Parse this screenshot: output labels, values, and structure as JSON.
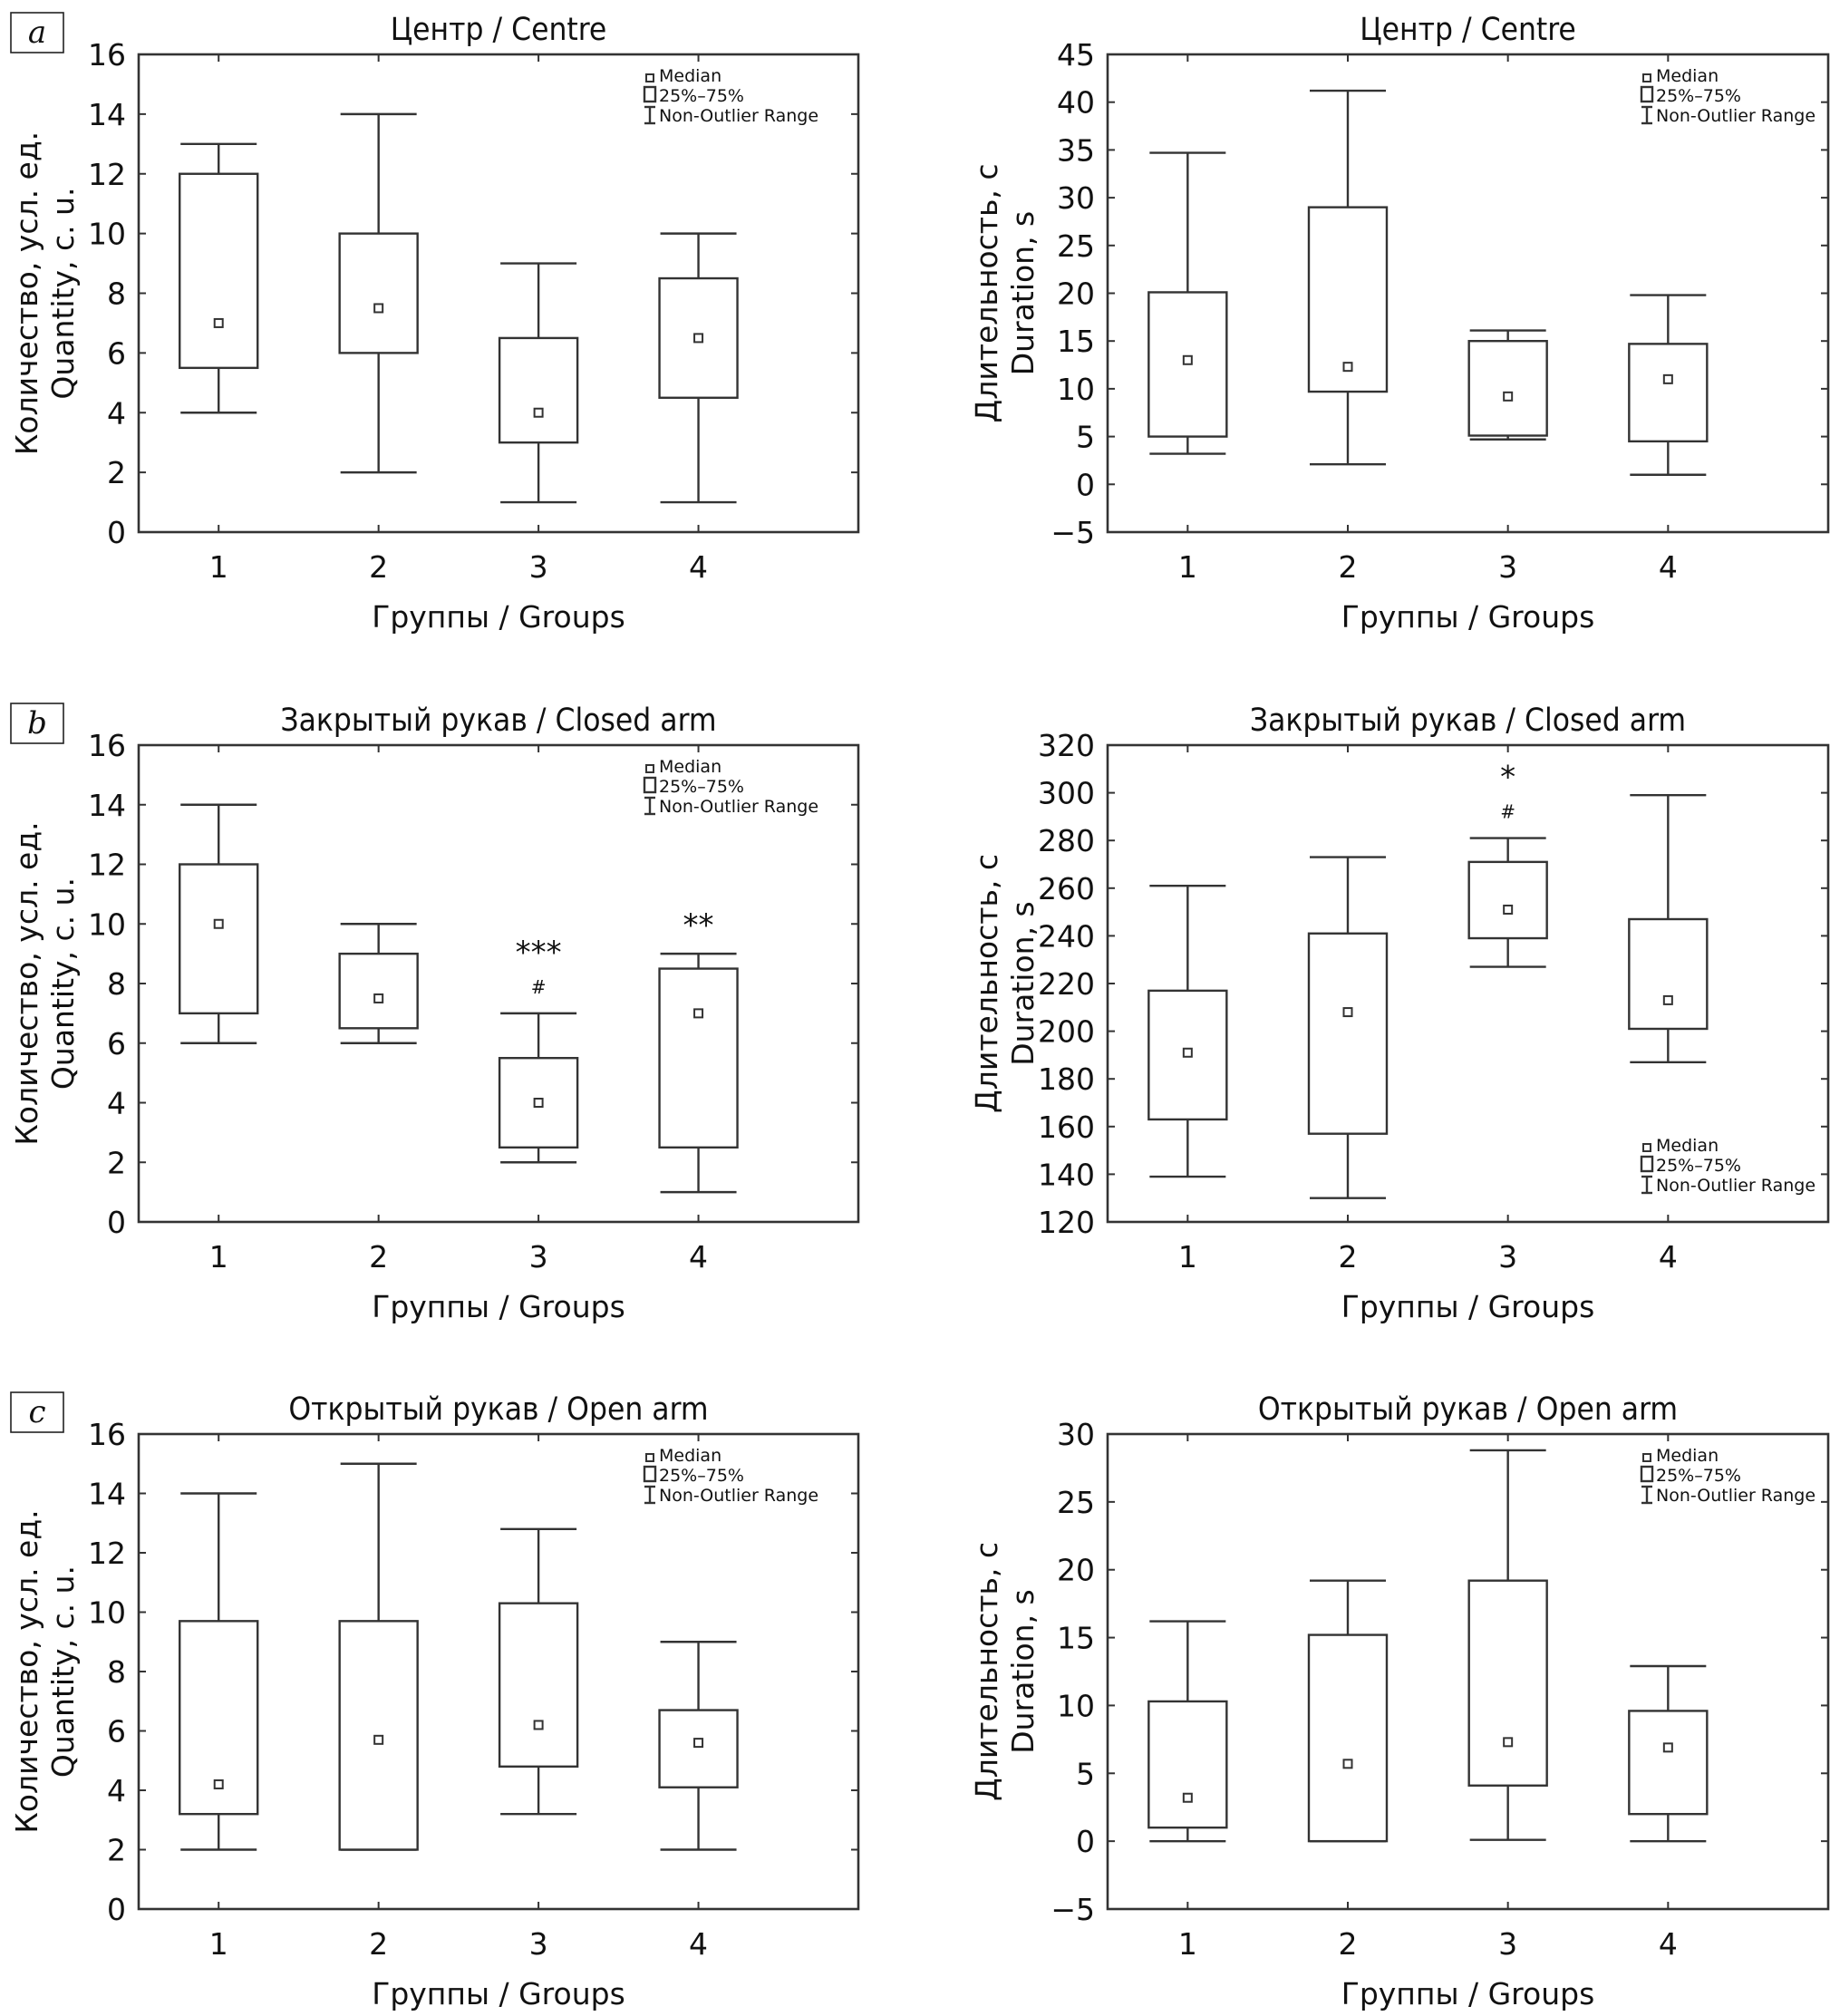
{
  "legend": {
    "median": "Median",
    "box": "25%–75%",
    "whisker": "Non-Outlier Range"
  },
  "chart_data": [
    {
      "id": "a-quantity",
      "panel_label": "a",
      "type": "boxplot",
      "title": "Центр / Centre",
      "xlabel": "Группы / Groups",
      "ylabel": [
        "Количество, усл. ед.",
        "Quantity, c. u."
      ],
      "categories": [
        "1",
        "2",
        "3",
        "4"
      ],
      "ylim": [
        0,
        16
      ],
      "yticks": [
        0,
        2,
        4,
        6,
        8,
        10,
        12,
        14,
        16
      ],
      "legend_position": "top-right",
      "series": [
        {
          "name": "1",
          "min": 4,
          "q1": 5.5,
          "median": 7,
          "q3": 12,
          "max": 13,
          "annotation": ""
        },
        {
          "name": "2",
          "min": 2,
          "q1": 6,
          "median": 7.5,
          "q3": 10,
          "max": 14,
          "annotation": ""
        },
        {
          "name": "3",
          "min": 1,
          "q1": 3,
          "median": 4,
          "q3": 6.5,
          "max": 9,
          "annotation": ""
        },
        {
          "name": "4",
          "min": 1,
          "q1": 4.5,
          "median": 6.5,
          "q3": 8.5,
          "max": 10,
          "annotation": ""
        }
      ]
    },
    {
      "id": "a-duration",
      "panel_label": "",
      "type": "boxplot",
      "title": "Центр / Centre",
      "xlabel": "Группы / Groups",
      "ylabel": [
        "Длительность, с",
        "Duration, s"
      ],
      "categories": [
        "1",
        "2",
        "3",
        "4"
      ],
      "ylim": [
        -5,
        45
      ],
      "yticks": [
        -5,
        0,
        5,
        10,
        15,
        20,
        25,
        30,
        35,
        40,
        45
      ],
      "legend_position": "top-right",
      "series": [
        {
          "name": "1",
          "min": 3.2,
          "q1": 5,
          "median": 13,
          "q3": 20.1,
          "max": 34.7,
          "annotation": ""
        },
        {
          "name": "2",
          "min": 2.1,
          "q1": 9.7,
          "median": 12.3,
          "q3": 29,
          "max": 41.2,
          "annotation": ""
        },
        {
          "name": "3",
          "min": 4.7,
          "q1": 5.1,
          "median": 9.2,
          "q3": 15,
          "max": 16.1,
          "annotation": ""
        },
        {
          "name": "4",
          "min": 1,
          "q1": 4.5,
          "median": 11,
          "q3": 14.7,
          "max": 19.8,
          "annotation": ""
        }
      ]
    },
    {
      "id": "b-quantity",
      "panel_label": "b",
      "type": "boxplot",
      "title": "Закрытый рукав / Closed arm",
      "xlabel": "Группы / Groups",
      "ylabel": [
        "Количество, усл. ед.",
        "Quantity, c. u."
      ],
      "categories": [
        "1",
        "2",
        "3",
        "4"
      ],
      "ylim": [
        0,
        16
      ],
      "yticks": [
        0,
        2,
        4,
        6,
        8,
        10,
        12,
        14,
        16
      ],
      "legend_position": "top-right",
      "series": [
        {
          "name": "1",
          "min": 6,
          "q1": 7,
          "median": 10,
          "q3": 12,
          "max": 14,
          "annotation": ""
        },
        {
          "name": "2",
          "min": 6,
          "q1": 6.5,
          "median": 7.5,
          "q3": 9,
          "max": 10,
          "annotation": ""
        },
        {
          "name": "3",
          "min": 2,
          "q1": 2.5,
          "median": 4,
          "q3": 5.5,
          "max": 7,
          "annotation": "***",
          "annotation2": "#"
        },
        {
          "name": "4",
          "min": 1,
          "q1": 2.5,
          "median": 7,
          "q3": 8.5,
          "max": 9,
          "annotation": "**"
        }
      ]
    },
    {
      "id": "b-duration",
      "panel_label": "",
      "type": "boxplot",
      "title": "Закрытый рукав / Closed arm",
      "xlabel": "Группы / Groups",
      "ylabel": [
        "Длительность, с",
        "Duration, s"
      ],
      "categories": [
        "1",
        "2",
        "3",
        "4"
      ],
      "ylim": [
        120,
        320
      ],
      "yticks": [
        120,
        140,
        160,
        180,
        200,
        220,
        240,
        260,
        280,
        300,
        320
      ],
      "legend_position": "bottom-right",
      "series": [
        {
          "name": "1",
          "min": 139,
          "q1": 163,
          "median": 191,
          "q3": 217,
          "max": 261,
          "annotation": ""
        },
        {
          "name": "2",
          "min": 130,
          "q1": 157,
          "median": 208,
          "q3": 241,
          "max": 273,
          "annotation": ""
        },
        {
          "name": "3",
          "min": 227,
          "q1": 239,
          "median": 251,
          "q3": 271,
          "max": 281,
          "annotation": "*",
          "annotation2": "#"
        },
        {
          "name": "4",
          "min": 187,
          "q1": 201,
          "median": 213,
          "q3": 247,
          "max": 299,
          "annotation": ""
        }
      ]
    },
    {
      "id": "c-quantity",
      "panel_label": "c",
      "type": "boxplot",
      "title": "Открытый рукав / Open arm",
      "xlabel": "Группы / Groups",
      "ylabel": [
        "Количество, усл. ед.",
        "Quantity, c. u."
      ],
      "categories": [
        "1",
        "2",
        "3",
        "4"
      ],
      "ylim": [
        0,
        16
      ],
      "yticks": [
        0,
        2,
        4,
        6,
        8,
        10,
        12,
        14,
        16
      ],
      "legend_position": "top-right",
      "series": [
        {
          "name": "1",
          "min": 2,
          "q1": 3.2,
          "median": 4.2,
          "q3": 9.7,
          "max": 14,
          "annotation": ""
        },
        {
          "name": "2",
          "min": 2,
          "q1": 2,
          "median": 5.7,
          "q3": 9.7,
          "max": 15,
          "annotation": ""
        },
        {
          "name": "3",
          "min": 3.2,
          "q1": 4.8,
          "median": 6.2,
          "q3": 10.3,
          "max": 12.8,
          "annotation": ""
        },
        {
          "name": "4",
          "min": 2,
          "q1": 4.1,
          "median": 5.6,
          "q3": 6.7,
          "max": 9,
          "annotation": ""
        }
      ]
    },
    {
      "id": "c-duration",
      "panel_label": "",
      "type": "boxplot",
      "title": "Открытый рукав / Open arm",
      "xlabel": "Группы / Groups",
      "ylabel": [
        "Длительность, с",
        "Duration, s"
      ],
      "categories": [
        "1",
        "2",
        "3",
        "4"
      ],
      "ylim": [
        -5,
        30
      ],
      "yticks": [
        -5,
        0,
        5,
        10,
        15,
        20,
        25,
        30
      ],
      "legend_position": "top-right",
      "series": [
        {
          "name": "1",
          "min": 0,
          "q1": 1,
          "median": 3.2,
          "q3": 10.3,
          "max": 16.2,
          "annotation": ""
        },
        {
          "name": "2",
          "min": 0,
          "q1": 0,
          "median": 5.7,
          "q3": 15.2,
          "max": 19.2,
          "annotation": ""
        },
        {
          "name": "3",
          "min": 0.1,
          "q1": 4.1,
          "median": 7.3,
          "q3": 19.2,
          "max": 28.8,
          "annotation": ""
        },
        {
          "name": "4",
          "min": 0,
          "q1": 2,
          "median": 6.9,
          "q3": 9.6,
          "max": 12.9,
          "annotation": ""
        }
      ]
    }
  ]
}
